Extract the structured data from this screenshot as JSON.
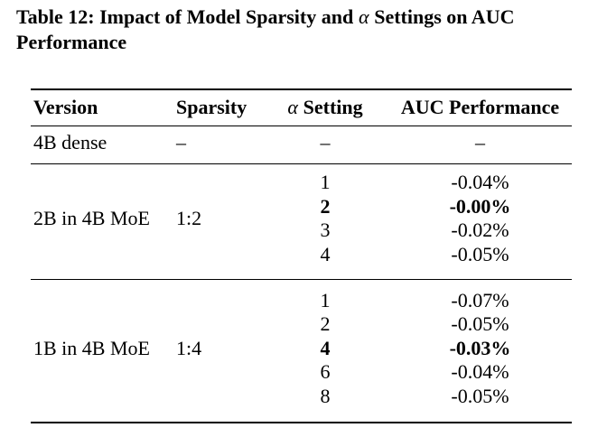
{
  "caption": {
    "prefix": "Table 12: Impact of Model Sparsity and",
    "alpha": "α",
    "suffix": "Settings on AUC",
    "line2": "Performance"
  },
  "table": {
    "header": {
      "version": "Version",
      "sparsity": "Sparsity",
      "alpha": "α",
      "setting": "Setting",
      "auc": "AUC Performance"
    },
    "groups": [
      {
        "version": "4B dense",
        "sparsity": "–",
        "rows": [
          {
            "alpha": "–",
            "auc": "–",
            "bold": false
          }
        ]
      },
      {
        "version": "2B in 4B MoE",
        "sparsity": "1:2",
        "rows": [
          {
            "alpha": "1",
            "auc": "-0.04%",
            "bold": false
          },
          {
            "alpha": "2",
            "auc": "-0.00%",
            "bold": true
          },
          {
            "alpha": "3",
            "auc": "-0.02%",
            "bold": false
          },
          {
            "alpha": "4",
            "auc": "-0.05%",
            "bold": false
          }
        ]
      },
      {
        "version": "1B in 4B MoE",
        "sparsity": "1:4",
        "rows": [
          {
            "alpha": "1",
            "auc": "-0.07%",
            "bold": false
          },
          {
            "alpha": "2",
            "auc": "-0.05%",
            "bold": false
          },
          {
            "alpha": "4",
            "auc": "-0.03%",
            "bold": true
          },
          {
            "alpha": "6",
            "auc": "-0.04%",
            "bold": false
          },
          {
            "alpha": "8",
            "auc": "-0.05%",
            "bold": false
          }
        ]
      }
    ]
  }
}
